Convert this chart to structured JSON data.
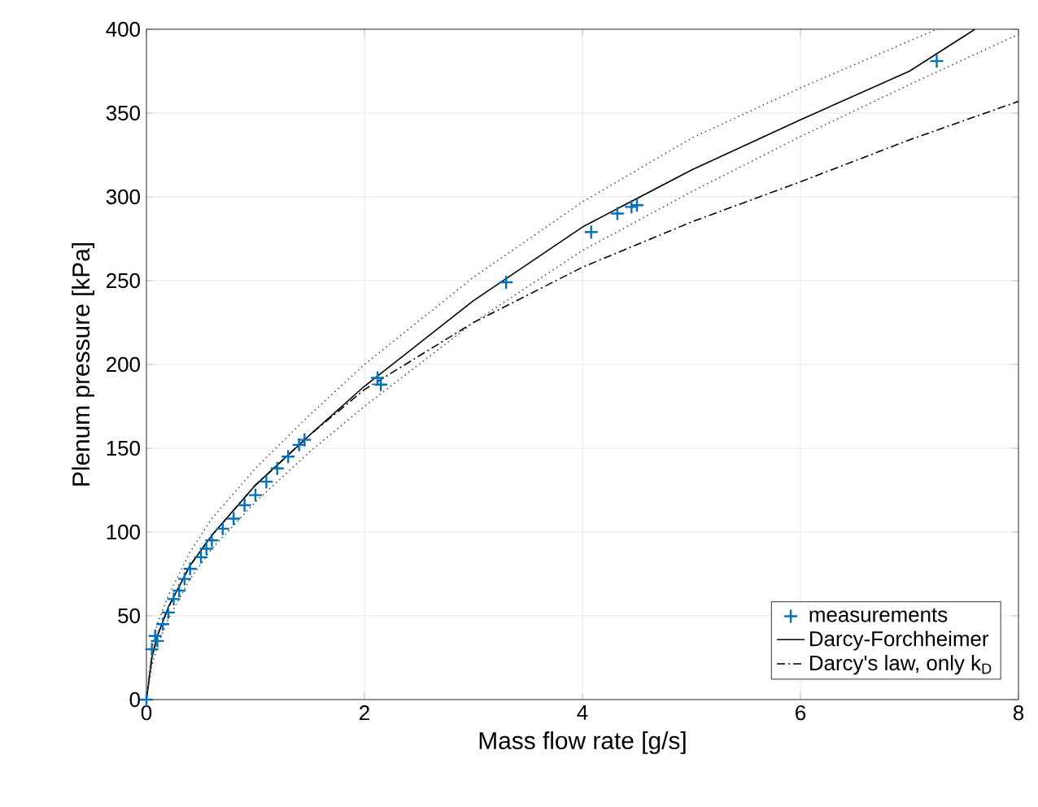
{
  "chart_data": {
    "type": "line",
    "xlabel": "Mass flow rate [g/s]",
    "ylabel": "Plenum pressure [kPa]",
    "xlim": [
      0,
      8
    ],
    "ylim": [
      0,
      400
    ],
    "xticks": [
      0,
      2,
      4,
      6,
      8
    ],
    "yticks": [
      0,
      50,
      100,
      150,
      200,
      250,
      300,
      350,
      400
    ],
    "grid": true,
    "legend": "bottom right",
    "series": [
      {
        "name": "measurements",
        "type": "scatter",
        "marker": "cross",
        "color": "#0072bd",
        "x": [
          0,
          0.05,
          0.08,
          0.1,
          0.15,
          0.2,
          0.25,
          0.3,
          0.35,
          0.4,
          0.5,
          0.55,
          0.6,
          0.7,
          0.8,
          0.9,
          1.0,
          1.1,
          1.2,
          1.3,
          1.4,
          1.45,
          2.12,
          2.15,
          3.3,
          4.08,
          4.32,
          4.45,
          4.5,
          7.25
        ],
        "values": [
          0,
          30,
          38,
          35,
          45,
          52,
          60,
          65,
          72,
          78,
          85,
          90,
          95,
          102,
          108,
          116,
          122,
          130,
          138,
          145,
          152,
          155,
          192,
          188,
          249,
          279,
          290,
          294,
          295,
          381
        ]
      },
      {
        "name": "Darcy-Forchheimer",
        "color": "#000000",
        "line_style": "solid",
        "x": [
          0,
          0.05,
          0.1,
          0.2,
          0.4,
          0.6,
          1,
          1.5,
          2,
          3,
          4,
          5,
          6,
          7,
          7.6
        ],
        "values": [
          0,
          25,
          38,
          55,
          80,
          98,
          128,
          158,
          187,
          238,
          282,
          316,
          346,
          375,
          400
        ]
      },
      {
        "name": "Darcy's law, only k$_{D}$",
        "color": "#000000",
        "line_style": "dashdot",
        "x": [
          0,
          0.05,
          0.1,
          0.2,
          0.4,
          0.6,
          1,
          1.5,
          2,
          3,
          4,
          5,
          6,
          7,
          8
        ],
        "values": [
          0,
          25,
          38,
          55,
          80,
          98,
          128,
          158,
          185,
          225,
          258,
          285,
          309,
          334,
          357
        ]
      },
      {
        "color": "#555555",
        "line_style": "dotted",
        "x": [
          0,
          0.05,
          0.1,
          0.2,
          0.4,
          0.6,
          1,
          1.5,
          2,
          3,
          4,
          5,
          6,
          7,
          7.25
        ],
        "values": [
          0,
          30,
          45,
          62,
          88,
          108,
          138,
          170,
          200,
          252,
          297,
          335,
          365,
          393,
          400
        ]
      },
      {
        "color": "#555555",
        "line_style": "dotted",
        "x": [
          0,
          0.05,
          0.1,
          0.2,
          0.4,
          0.6,
          1,
          1.5,
          2,
          3,
          4,
          5,
          6,
          7,
          8
        ],
        "values": [
          0,
          20,
          32,
          48,
          72,
          90,
          118,
          148,
          175,
          225,
          268,
          303,
          336,
          367,
          397
        ]
      }
    ]
  }
}
